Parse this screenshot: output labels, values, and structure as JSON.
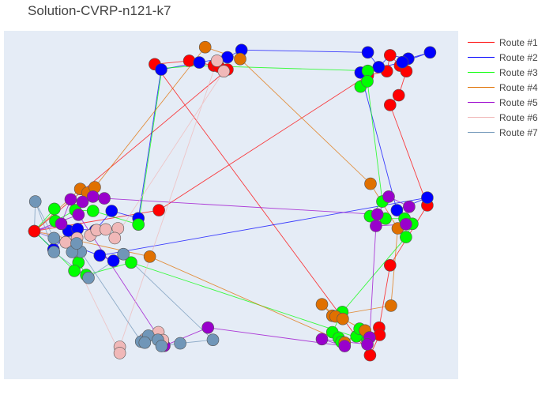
{
  "chart_data": {
    "type": "scatter",
    "title": "Solution-CVRP-n121-k7",
    "xlabel": "",
    "ylabel": "",
    "xlim": [
      0,
      100
    ],
    "ylim": [
      0,
      100
    ],
    "grid": false,
    "background": "#e5ecf6",
    "legend_position": "right",
    "series": [
      {
        "name": "Route #1",
        "color": "#ff0000",
        "points": [
          [
            6.7,
            42.5
          ],
          [
            34.1,
            48.5
          ],
          [
            80.1,
            87.2
          ],
          [
            84.3,
            88.4
          ],
          [
            85.0,
            93.0
          ],
          [
            87.2,
            90.0
          ],
          [
            88.6,
            88.4
          ],
          [
            86.9,
            81.5
          ],
          [
            85.0,
            78.7
          ],
          [
            93.2,
            49.9
          ],
          [
            85.0,
            32.7
          ],
          [
            82.6,
            14.8
          ],
          [
            82.7,
            12.7
          ],
          [
            80.6,
            6.9
          ],
          [
            33.2,
            90.4
          ],
          [
            40.8,
            91.4
          ],
          [
            46.2,
            90.0
          ],
          [
            47.3,
            89.7
          ],
          [
            49.2,
            88.9
          ],
          [
            6.7,
            42.5
          ]
        ],
        "nodes": [
          [
            34.1,
            48.5
          ],
          [
            80.1,
            87.2
          ],
          [
            84.3,
            88.4
          ],
          [
            85.0,
            93.0
          ],
          [
            87.2,
            90.0
          ],
          [
            88.6,
            88.4
          ],
          [
            86.9,
            81.5
          ],
          [
            85.0,
            78.7
          ],
          [
            93.2,
            49.9
          ],
          [
            85.0,
            32.7
          ],
          [
            82.6,
            14.8
          ],
          [
            82.7,
            12.7
          ],
          [
            80.6,
            6.9
          ],
          [
            33.2,
            90.4
          ],
          [
            40.8,
            91.4
          ],
          [
            46.2,
            90.0
          ],
          [
            47.3,
            89.7
          ],
          [
            49.2,
            88.9
          ],
          [
            6.7,
            42.5
          ]
        ]
      },
      {
        "name": "Route #2",
        "color": "#0000ff",
        "points": [
          [
            6.7,
            42.5
          ],
          [
            10.9,
            37.2
          ],
          [
            14.2,
            42.6
          ],
          [
            16.2,
            43.1
          ],
          [
            20.1,
            42.7
          ],
          [
            23.7,
            48.3
          ],
          [
            29.6,
            46.2
          ],
          [
            34.6,
            88.9
          ],
          [
            43.0,
            90.9
          ],
          [
            49.2,
            92.4
          ],
          [
            52.3,
            94.5
          ],
          [
            80.1,
            93.8
          ],
          [
            82.5,
            89.6
          ],
          [
            85.0,
            93.0
          ],
          [
            89.0,
            92.0
          ],
          [
            93.8,
            93.8
          ],
          [
            87.7,
            91.0
          ],
          [
            78.5,
            88.0
          ],
          [
            86.5,
            48.5
          ],
          [
            93.2,
            52.1
          ],
          [
            21.1,
            35.5
          ],
          [
            24.1,
            34.0
          ],
          [
            6.7,
            42.5
          ]
        ],
        "nodes": [
          [
            10.9,
            37.2
          ],
          [
            14.2,
            42.6
          ],
          [
            16.2,
            43.1
          ],
          [
            20.1,
            42.7
          ],
          [
            23.7,
            48.3
          ],
          [
            29.6,
            46.2
          ],
          [
            34.6,
            88.9
          ],
          [
            43.0,
            90.9
          ],
          [
            49.2,
            92.4
          ],
          [
            52.3,
            94.5
          ],
          [
            80.1,
            93.8
          ],
          [
            82.5,
            89.6
          ],
          [
            89.0,
            92.0
          ],
          [
            93.8,
            93.8
          ],
          [
            87.7,
            91.0
          ],
          [
            78.5,
            88.0
          ],
          [
            86.5,
            48.5
          ],
          [
            93.2,
            52.1
          ],
          [
            21.1,
            35.5
          ],
          [
            24.1,
            34.0
          ]
        ]
      },
      {
        "name": "Route #3",
        "color": "#00ff00",
        "points": [
          [
            6.7,
            42.5
          ],
          [
            11.1,
            48.9
          ],
          [
            11.3,
            45.4
          ],
          [
            15.7,
            48.5
          ],
          [
            19.6,
            48.3
          ],
          [
            29.6,
            44.4
          ],
          [
            34.8,
            89.2
          ],
          [
            43.0,
            90.0
          ],
          [
            80.1,
            88.5
          ],
          [
            78.5,
            84.0
          ],
          [
            80.0,
            85.5
          ],
          [
            83.3,
            51.0
          ],
          [
            80.6,
            46.8
          ],
          [
            84.0,
            46.1
          ],
          [
            88.2,
            46.1
          ],
          [
            89.9,
            44.6
          ],
          [
            88.5,
            40.8
          ],
          [
            74.5,
            19.3
          ],
          [
            72.3,
            13.5
          ],
          [
            73.7,
            11.8
          ],
          [
            74.3,
            10.7
          ],
          [
            77.6,
            12.3
          ],
          [
            78.3,
            14.5
          ],
          [
            80.0,
            11.0
          ],
          [
            28.0,
            33.5
          ],
          [
            18.1,
            29.9
          ],
          [
            16.4,
            33.5
          ],
          [
            15.5,
            31.1
          ],
          [
            6.7,
            42.5
          ]
        ],
        "nodes": [
          [
            11.1,
            48.9
          ],
          [
            11.3,
            45.4
          ],
          [
            15.7,
            48.5
          ],
          [
            19.6,
            48.3
          ],
          [
            29.6,
            44.4
          ],
          [
            80.1,
            88.5
          ],
          [
            78.5,
            84.0
          ],
          [
            80.0,
            85.5
          ],
          [
            83.3,
            51.0
          ],
          [
            80.6,
            46.8
          ],
          [
            84.0,
            46.1
          ],
          [
            88.2,
            46.1
          ],
          [
            89.9,
            44.6
          ],
          [
            88.5,
            40.8
          ],
          [
            74.5,
            19.3
          ],
          [
            72.3,
            13.5
          ],
          [
            73.7,
            11.8
          ],
          [
            74.3,
            10.7
          ],
          [
            77.6,
            12.3
          ],
          [
            78.3,
            14.5
          ],
          [
            80.0,
            11.0
          ],
          [
            28.0,
            33.5
          ],
          [
            18.1,
            29.9
          ],
          [
            16.4,
            33.5
          ],
          [
            15.5,
            31.1
          ]
        ]
      },
      {
        "name": "Route #4",
        "color": "#e07000",
        "points": [
          [
            6.7,
            42.5
          ],
          [
            16.8,
            54.6
          ],
          [
            18.4,
            53.5
          ],
          [
            20.0,
            55.1
          ],
          [
            44.3,
            95.3
          ],
          [
            52.0,
            91.9
          ],
          [
            80.7,
            56.1
          ],
          [
            86.7,
            43.3
          ],
          [
            85.2,
            21.1
          ],
          [
            72.3,
            18.2
          ],
          [
            70.0,
            21.5
          ],
          [
            73.0,
            18.0
          ],
          [
            74.6,
            17.3
          ],
          [
            79.5,
            14.0
          ],
          [
            75.0,
            10.5
          ],
          [
            32.1,
            35.2
          ],
          [
            6.7,
            42.5
          ]
        ],
        "nodes": [
          [
            16.8,
            54.6
          ],
          [
            18.4,
            53.5
          ],
          [
            20.0,
            55.1
          ],
          [
            44.3,
            95.3
          ],
          [
            52.0,
            91.9
          ],
          [
            80.7,
            56.1
          ],
          [
            86.7,
            43.3
          ],
          [
            85.2,
            21.1
          ],
          [
            72.3,
            18.2
          ],
          [
            70.0,
            21.5
          ],
          [
            73.0,
            18.0
          ],
          [
            74.6,
            17.3
          ],
          [
            79.5,
            14.0
          ],
          [
            75.0,
            10.5
          ],
          [
            32.1,
            35.2
          ]
        ]
      },
      {
        "name": "Route #5",
        "color": "#9900cc",
        "points": [
          [
            6.7,
            42.5
          ],
          [
            12.6,
            44.6
          ],
          [
            14.7,
            51.6
          ],
          [
            17.3,
            50.9
          ],
          [
            19.6,
            52.4
          ],
          [
            22.1,
            51.9
          ],
          [
            82.2,
            47.3
          ],
          [
            84.7,
            52.4
          ],
          [
            89.2,
            49.5
          ],
          [
            88.5,
            44.5
          ],
          [
            81.9,
            44.0
          ],
          [
            80.5,
            12.0
          ],
          [
            80.0,
            10.0
          ],
          [
            70.0,
            11.5
          ],
          [
            75.0,
            9.5
          ],
          [
            44.9,
            14.8
          ],
          [
            35.3,
            9.6
          ],
          [
            16.4,
            47.2
          ],
          [
            6.7,
            42.5
          ]
        ],
        "nodes": [
          [
            12.6,
            44.6
          ],
          [
            14.7,
            51.6
          ],
          [
            17.3,
            50.9
          ],
          [
            19.6,
            52.4
          ],
          [
            22.1,
            51.9
          ],
          [
            82.2,
            47.3
          ],
          [
            84.7,
            52.4
          ],
          [
            89.2,
            49.5
          ],
          [
            88.5,
            44.5
          ],
          [
            81.9,
            44.0
          ],
          [
            80.5,
            12.0
          ],
          [
            80.0,
            10.0
          ],
          [
            70.0,
            11.5
          ],
          [
            75.0,
            9.5
          ],
          [
            44.9,
            14.8
          ],
          [
            35.3,
            9.6
          ],
          [
            16.4,
            47.2
          ]
        ]
      },
      {
        "name": "Route #6",
        "color": "#f0b8b8",
        "points": [
          [
            6.7,
            42.5
          ],
          [
            16.1,
            40.5
          ],
          [
            19.0,
            41.3
          ],
          [
            20.4,
            42.8
          ],
          [
            22.4,
            43.0
          ],
          [
            25.1,
            43.3
          ],
          [
            24.4,
            40.5
          ],
          [
            48.4,
            88.4
          ],
          [
            46.9,
            91.4
          ],
          [
            25.5,
            9.3
          ],
          [
            25.5,
            7.5
          ],
          [
            13.6,
            39.3
          ],
          [
            6.7,
            42.5
          ]
        ],
        "nodes": [
          [
            16.1,
            40.5
          ],
          [
            19.0,
            41.3
          ],
          [
            20.4,
            42.8
          ],
          [
            22.4,
            43.0
          ],
          [
            25.1,
            43.3
          ],
          [
            24.4,
            40.5
          ],
          [
            48.4,
            88.4
          ],
          [
            46.9,
            91.4
          ],
          [
            25.5,
            9.3
          ],
          [
            25.5,
            7.5
          ],
          [
            13.6,
            39.3
          ],
          [
            34.0,
            13.5
          ],
          [
            35.0,
            11.2
          ],
          [
            31.0,
            11.5
          ]
        ]
      },
      {
        "name": "Route #7",
        "color": "#7096b8",
        "points": [
          [
            6.7,
            42.5
          ],
          [
            6.9,
            51.0
          ],
          [
            11.0,
            40.5
          ],
          [
            16.9,
            36.6
          ],
          [
            30.2,
            10.8
          ],
          [
            31.8,
            12.5
          ],
          [
            33.9,
            11.3
          ],
          [
            34.7,
            9.5
          ],
          [
            38.8,
            10.3
          ],
          [
            46.0,
            11.3
          ],
          [
            26.3,
            35.9
          ],
          [
            18.6,
            29.1
          ],
          [
            11.0,
            36.5
          ],
          [
            6.9,
            51.0
          ]
        ],
        "nodes": [
          [
            6.9,
            51.0
          ],
          [
            11.0,
            40.5
          ],
          [
            16.9,
            36.6
          ],
          [
            30.2,
            10.8
          ],
          [
            31.8,
            12.5
          ],
          [
            33.9,
            11.3
          ],
          [
            34.7,
            9.5
          ],
          [
            38.8,
            10.3
          ],
          [
            46.0,
            11.3
          ],
          [
            26.3,
            35.9
          ],
          [
            18.6,
            29.1
          ],
          [
            11.0,
            36.5
          ],
          [
            31.0,
            10.5
          ],
          [
            15.0,
            36.5
          ],
          [
            16.0,
            39.0
          ]
        ]
      }
    ]
  }
}
